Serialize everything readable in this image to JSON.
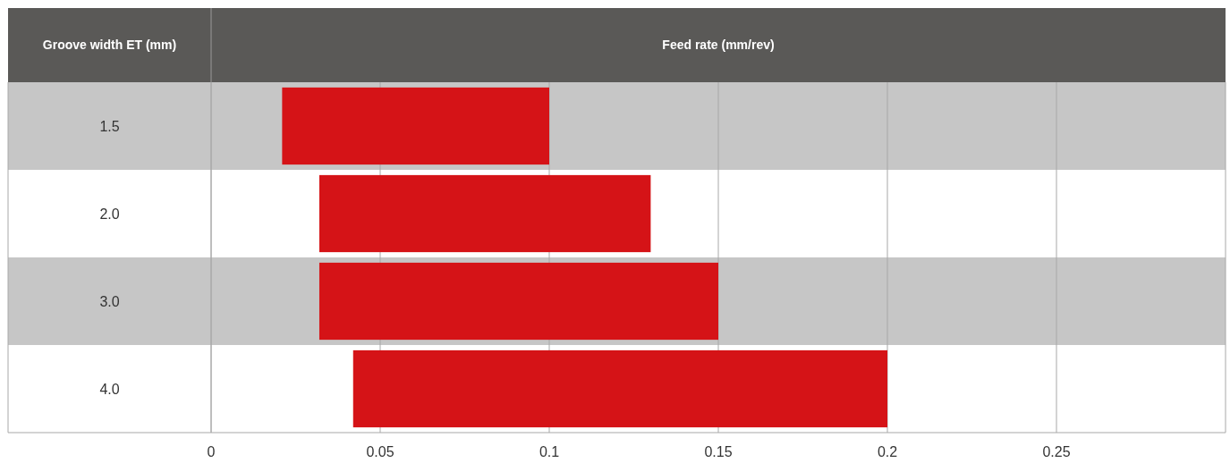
{
  "chart_data": {
    "type": "bar",
    "orientation": "horizontal",
    "xlabel": "Feed rate (mm/rev)",
    "ylabel": "Groove width ET (mm)",
    "categories": [
      "1.5",
      "2.0",
      "3.0",
      "4.0"
    ],
    "base": [
      0.021,
      0.032,
      0.032,
      0.042
    ],
    "values": [
      0.079,
      0.098,
      0.118,
      0.158
    ],
    "color": "#d51317",
    "xlim": [
      0,
      0.3
    ],
    "xticks": [
      0,
      0.05,
      0.1,
      0.15,
      0.2,
      0.25
    ],
    "grid": "x"
  }
}
